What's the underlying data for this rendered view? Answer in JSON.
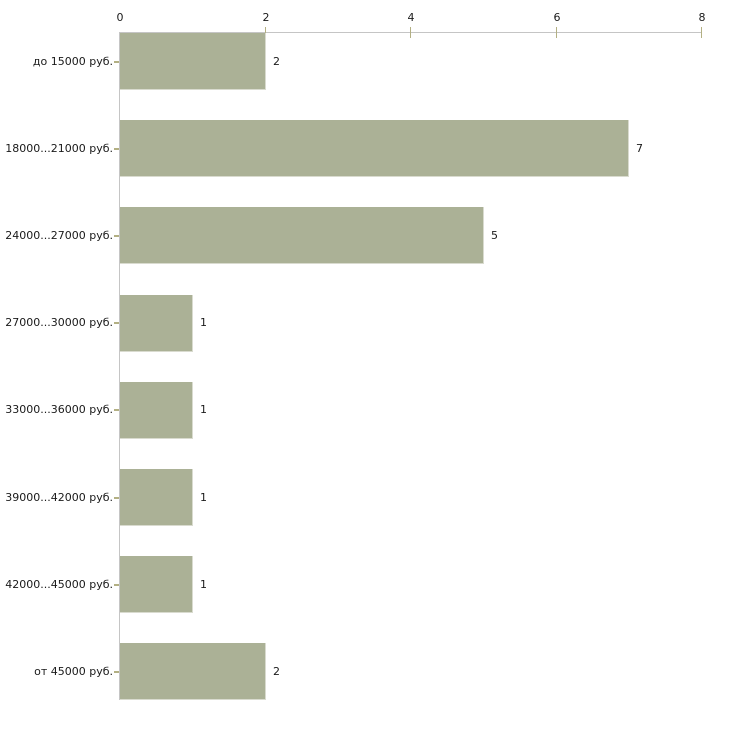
{
  "chart_data": {
    "type": "bar",
    "orientation": "horizontal",
    "title": "",
    "xlabel": "",
    "ylabel": "",
    "categories": [
      "до 15000 руб.",
      "18000...21000 руб.",
      "24000...27000 руб.",
      "27000...30000 руб.",
      "33000...36000 руб.",
      "39000...42000 руб.",
      "42000...45000 руб.",
      "от 45000 руб."
    ],
    "values": [
      2,
      7,
      5,
      1,
      1,
      1,
      1,
      2
    ],
    "value_labels": [
      "2",
      "7",
      "5",
      "1",
      "1",
      "1",
      "1",
      "2"
    ],
    "x_ticks": [
      0,
      2,
      4,
      6,
      8
    ],
    "x_tick_labels": [
      "0",
      "2",
      "4",
      "6",
      "8"
    ],
    "xlim": [
      0,
      8
    ],
    "axis_position": "top",
    "grid": false,
    "legend": false,
    "colors": {
      "bar_fill": "#abb196",
      "bar_edge_light": "#d9dbcf",
      "axis_line": "#c5c5c5",
      "tick_mark": "#b3b083",
      "text": "#1a1a1a",
      "background": "#ffffff"
    }
  }
}
